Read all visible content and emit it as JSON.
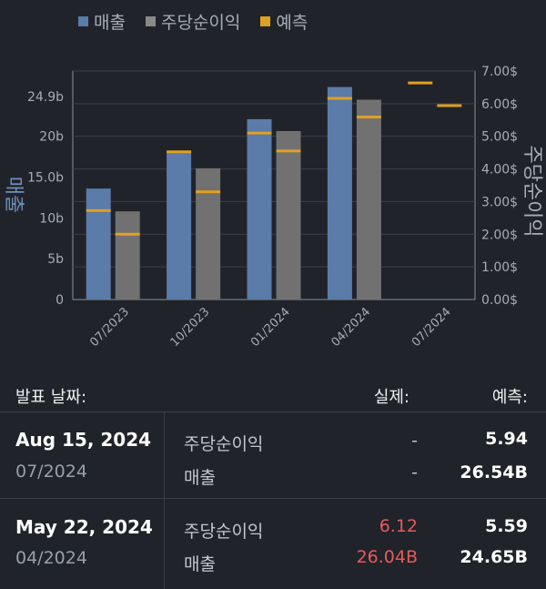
{
  "legend": [
    {
      "label": "매출",
      "color": "#5b7ba8"
    },
    {
      "label": "주당순이익",
      "color": "#8a8a8a"
    },
    {
      "label": "예측",
      "color": "#e0a020"
    }
  ],
  "chart_data": {
    "type": "bar",
    "categories": [
      "07/2023",
      "10/2023",
      "01/2024",
      "04/2024",
      "07/2024"
    ],
    "series": [
      {
        "name": "매출",
        "axis": "left",
        "values": [
          13.6,
          18.1,
          22.1,
          26.04,
          null
        ],
        "color": "#5b7ba8"
      },
      {
        "name": "주당순이익",
        "axis": "right",
        "values": [
          2.7,
          4.02,
          5.16,
          6.12,
          null
        ],
        "color": "#717171"
      }
    ],
    "forecasts": {
      "매출": [
        10.9,
        18.1,
        20.4,
        24.65,
        26.54
      ],
      "주당순이익": [
        2.0,
        3.3,
        4.55,
        5.59,
        5.94
      ]
    },
    "ylabel_left": "매출",
    "ylabel_right": "주당순이익",
    "ylim_left": [
      0,
      28
    ],
    "ylim_right": [
      0,
      7
    ],
    "y_ticks_left": [
      {
        "value": 0,
        "label": "0"
      },
      {
        "value": 5,
        "label": "5b"
      },
      {
        "value": 10,
        "label": "10b"
      },
      {
        "value": 15,
        "label": "15.0b"
      },
      {
        "value": 20,
        "label": "20b"
      },
      {
        "value": 24.9,
        "label": "24.9b"
      }
    ],
    "y_ticks_right": [
      "0.00$",
      "1.00$",
      "2.00$",
      "3.00$",
      "4.00$",
      "5.00$",
      "6.00$",
      "7.00$"
    ],
    "grid": true,
    "legend_position": "top-left"
  },
  "table": {
    "headers": {
      "date": "발표 날짜:",
      "actual": "실제:",
      "estimate": "예측:"
    },
    "rows": [
      {
        "date": "Aug 15, 2024",
        "period": "07/2024",
        "metrics": [
          {
            "name": "주당순이익",
            "actual": "-",
            "estimate": "5.94",
            "actual_red": false
          },
          {
            "name": "매출",
            "actual": "-",
            "estimate": "26.54B",
            "actual_red": false
          }
        ]
      },
      {
        "date": "May 22, 2024",
        "period": "04/2024",
        "metrics": [
          {
            "name": "주당순이익",
            "actual": "6.12",
            "estimate": "5.59",
            "actual_red": true
          },
          {
            "name": "매출",
            "actual": "26.04B",
            "estimate": "24.65B",
            "actual_red": true
          }
        ]
      }
    ]
  }
}
